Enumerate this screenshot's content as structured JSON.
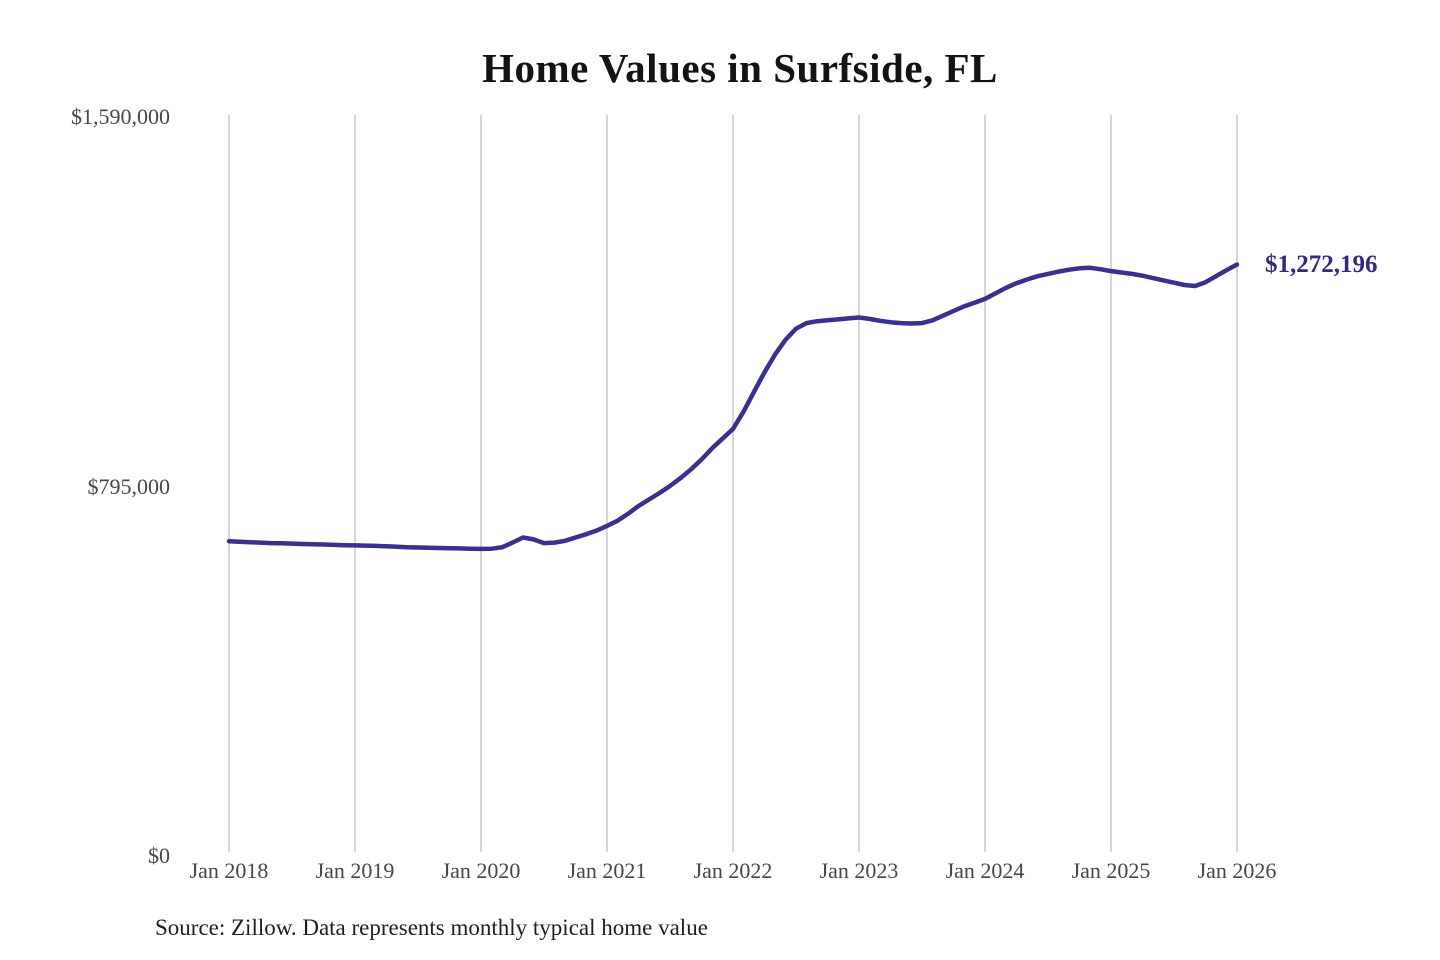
{
  "title": "Home Values in Surfside, FL",
  "source_note": "Source: Zillow. Data represents monthly typical home value",
  "colors": {
    "background": "#ffffff",
    "line": "#39318f",
    "end_label_text": "#2f2b80",
    "grid": "#c9c9c9",
    "axis_text": "#474747",
    "title_text": "#131313"
  },
  "chart_data": {
    "type": "line",
    "title": "Home Values in Surfside, FL",
    "xlabel": "",
    "ylabel": "",
    "ylim": [
      0,
      1590000
    ],
    "grid": "vertical-only",
    "legend": "none",
    "y_ticks": [
      {
        "label": "$1,590,000",
        "value": 1590000
      },
      {
        "label": "$795,000",
        "value": 795000
      },
      {
        "label": "$0",
        "value": 0
      }
    ],
    "x_ticks": [
      "Jan 2018",
      "Jan 2019",
      "Jan 2020",
      "Jan 2021",
      "Jan 2022",
      "Jan 2023",
      "Jan 2024",
      "Jan 2025",
      "Jan 2026"
    ],
    "series": [
      {
        "name": "Monthly typical home value",
        "x_start": "2018-01",
        "x_interval": "monthly",
        "final_value": 1272196,
        "final_label": "$1,272,196",
        "values": [
          676000,
          675000,
          674000,
          673000,
          672000,
          671500,
          671000,
          670000,
          669500,
          669000,
          668000,
          667500,
          667000,
          666500,
          666000,
          665000,
          664000,
          663000,
          662500,
          662000,
          661500,
          661000,
          660500,
          660000,
          659500,
          660000,
          663000,
          673000,
          684000,
          680000,
          672000,
          673000,
          677000,
          684000,
          691000,
          699000,
          709000,
          720000,
          735000,
          752000,
          766000,
          780000,
          795000,
          812000,
          831000,
          852000,
          876000,
          897000,
          918000,
          955000,
          998000,
          1040000,
          1078000,
          1110000,
          1134000,
          1146000,
          1150000,
          1152000,
          1154000,
          1156000,
          1158000,
          1155000,
          1151000,
          1148000,
          1146000,
          1145000,
          1146000,
          1152000,
          1162000,
          1172000,
          1182000,
          1190000,
          1198000,
          1210000,
          1222000,
          1232000,
          1240000,
          1247000,
          1252000,
          1257000,
          1261000,
          1264000,
          1265000,
          1262000,
          1258000,
          1255000,
          1252000,
          1248000,
          1243000,
          1238000,
          1233000,
          1228000,
          1226000,
          1234000,
          1247000,
          1260000,
          1272196
        ]
      }
    ]
  }
}
